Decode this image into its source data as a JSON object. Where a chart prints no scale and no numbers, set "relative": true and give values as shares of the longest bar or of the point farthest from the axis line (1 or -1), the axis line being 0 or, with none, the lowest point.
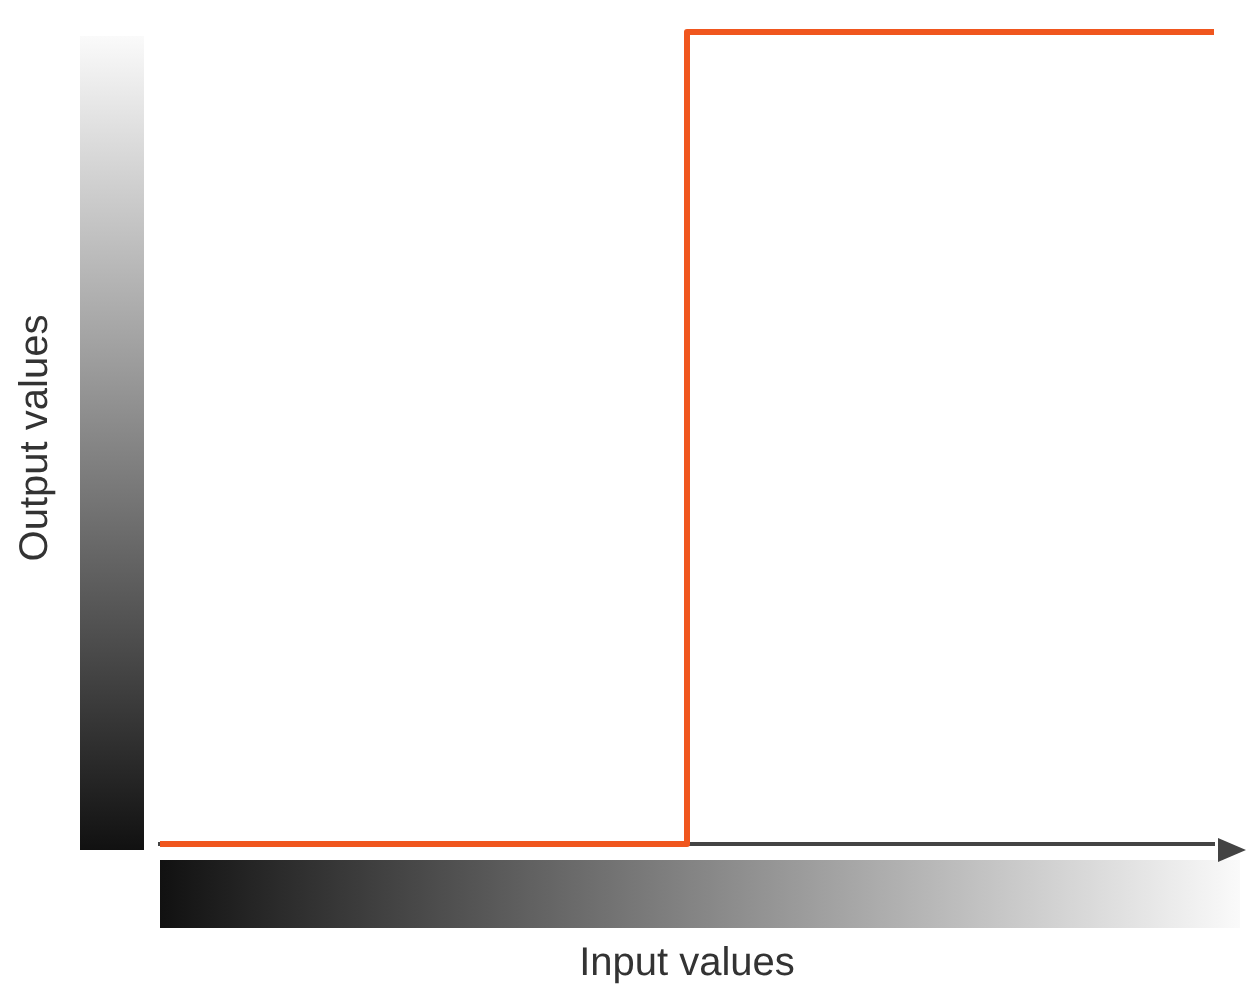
{
  "chart_data": {
    "type": "step",
    "xlabel": "Input values",
    "ylabel": "Output values",
    "categories": [
      null,
      null,
      null
    ],
    "values": [
      0,
      1,
      1
    ],
    "color": "#f0561e",
    "relative": true
  }
}
